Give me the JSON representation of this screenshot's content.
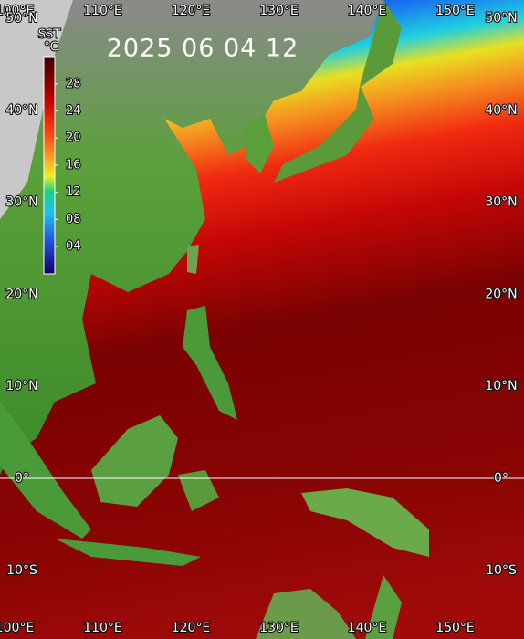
{
  "title": "2025 06 04 12",
  "colorbar": {
    "title": "SST",
    "unit": "°C",
    "ticks": [
      "04",
      "08",
      "12",
      "16",
      "20",
      "24",
      "28"
    ]
  },
  "lon_labels": [
    "100°E",
    "110°E",
    "120°E",
    "130°E",
    "140°E",
    "150°E"
  ],
  "lat_labels": [
    "50°N",
    "40°N",
    "30°N",
    "20°N",
    "10°N",
    "0°",
    "10°S"
  ]
}
